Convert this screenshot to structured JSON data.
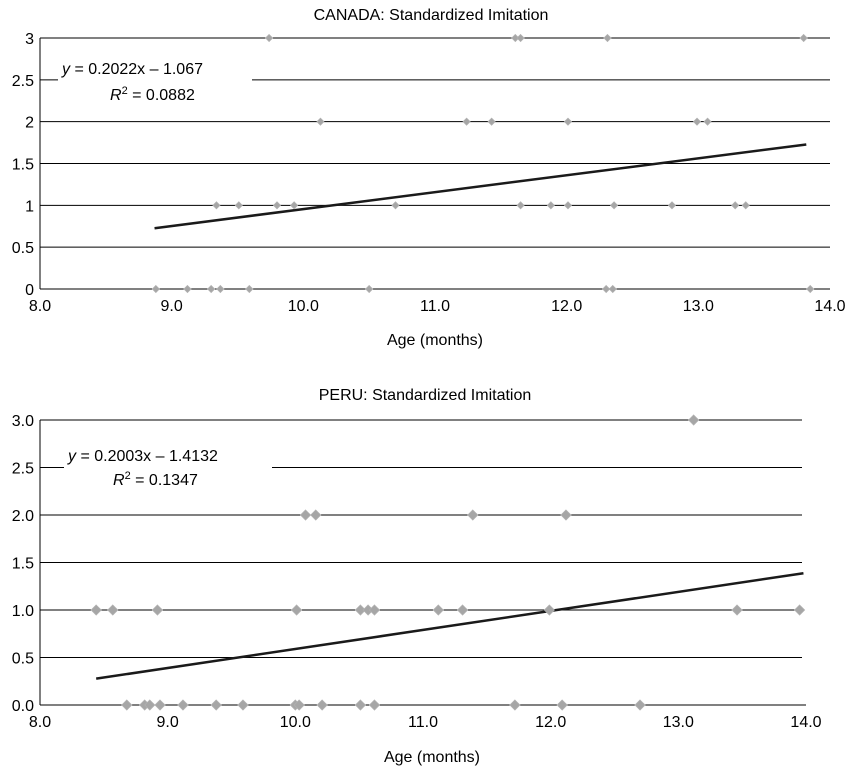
{
  "chart_data": [
    {
      "type": "scatter",
      "title": "CANADA: Standardized Imitation",
      "xlabel": "Age (months)",
      "ylabel": "",
      "xlim": [
        8.0,
        14.0
      ],
      "ylim": [
        0,
        3
      ],
      "x_ticks": [
        "8.0",
        "9.0",
        "10.0",
        "11.0",
        "12.0",
        "13.0",
        "14.0"
      ],
      "y_ticks": [
        "0",
        "0.5",
        "1",
        "1.5",
        "2",
        "2.5",
        "3"
      ],
      "grid": true,
      "marker_color": "#a6a6a6",
      "trendline": {
        "slope": 0.2022,
        "intercept": -1.067,
        "x_start": 8.87,
        "x_end": 13.82
      },
      "equation": {
        "lhs": "y",
        "rhs": " = 0.2022x – 1.067",
        "r_label": "R",
        "r_sup": "2",
        "r_value": " = 0.0882"
      },
      "points": [
        {
          "x": 9.74,
          "y": 3
        },
        {
          "x": 11.61,
          "y": 3
        },
        {
          "x": 11.65,
          "y": 3
        },
        {
          "x": 12.31,
          "y": 3
        },
        {
          "x": 13.8,
          "y": 3
        },
        {
          "x": 10.13,
          "y": 2
        },
        {
          "x": 11.24,
          "y": 2
        },
        {
          "x": 11.43,
          "y": 2
        },
        {
          "x": 12.01,
          "y": 2
        },
        {
          "x": 12.99,
          "y": 2
        },
        {
          "x": 13.07,
          "y": 2
        },
        {
          "x": 9.34,
          "y": 1
        },
        {
          "x": 9.51,
          "y": 1
        },
        {
          "x": 9.8,
          "y": 1
        },
        {
          "x": 9.93,
          "y": 1
        },
        {
          "x": 10.7,
          "y": 1
        },
        {
          "x": 11.65,
          "y": 1
        },
        {
          "x": 11.88,
          "y": 1
        },
        {
          "x": 12.01,
          "y": 1
        },
        {
          "x": 12.36,
          "y": 1
        },
        {
          "x": 12.8,
          "y": 1
        },
        {
          "x": 13.28,
          "y": 1
        },
        {
          "x": 13.36,
          "y": 1
        },
        {
          "x": 8.88,
          "y": 0
        },
        {
          "x": 9.12,
          "y": 0
        },
        {
          "x": 9.3,
          "y": 0
        },
        {
          "x": 9.37,
          "y": 0
        },
        {
          "x": 9.59,
          "y": 0
        },
        {
          "x": 10.5,
          "y": 0
        },
        {
          "x": 12.3,
          "y": 0
        },
        {
          "x": 12.35,
          "y": 0
        },
        {
          "x": 13.85,
          "y": 0
        }
      ]
    },
    {
      "type": "scatter",
      "title": "PERU: Standardized Imitation",
      "xlabel": "Age (months)",
      "ylabel": "",
      "xlim": [
        8.0,
        14.0
      ],
      "ylim": [
        0,
        3
      ],
      "x_ticks": [
        "8.0",
        "9.0",
        "10.0",
        "11.0",
        "12.0",
        "13.0",
        "14.0"
      ],
      "y_ticks": [
        "0.0",
        "0.5",
        "1.0",
        "1.5",
        "2.0",
        "2.5",
        "3.0"
      ],
      "grid": true,
      "marker_color": "#a6a6a6",
      "trendline": {
        "slope": 0.2003,
        "intercept": -1.4132,
        "x_start": 8.44,
        "x_end": 13.98
      },
      "equation": {
        "lhs": "y",
        "rhs": " = 0.2003x – 1.4132",
        "r_label": "R",
        "r_sup": "2",
        "r_value": " = 0.1347"
      },
      "points": [
        {
          "x": 13.12,
          "y": 3
        },
        {
          "x": 10.08,
          "y": 2
        },
        {
          "x": 10.16,
          "y": 2
        },
        {
          "x": 11.39,
          "y": 2
        },
        {
          "x": 12.12,
          "y": 2
        },
        {
          "x": 8.44,
          "y": 1
        },
        {
          "x": 8.57,
          "y": 1
        },
        {
          "x": 8.92,
          "y": 1
        },
        {
          "x": 10.01,
          "y": 1
        },
        {
          "x": 10.51,
          "y": 1
        },
        {
          "x": 10.57,
          "y": 1
        },
        {
          "x": 10.62,
          "y": 1
        },
        {
          "x": 11.12,
          "y": 1
        },
        {
          "x": 11.31,
          "y": 1
        },
        {
          "x": 11.99,
          "y": 1
        },
        {
          "x": 13.46,
          "y": 1
        },
        {
          "x": 13.95,
          "y": 1
        },
        {
          "x": 8.68,
          "y": 0
        },
        {
          "x": 8.82,
          "y": 0
        },
        {
          "x": 8.86,
          "y": 0
        },
        {
          "x": 8.94,
          "y": 0
        },
        {
          "x": 9.12,
          "y": 0
        },
        {
          "x": 9.38,
          "y": 0
        },
        {
          "x": 9.59,
          "y": 0
        },
        {
          "x": 10.0,
          "y": 0
        },
        {
          "x": 10.03,
          "y": 0
        },
        {
          "x": 10.21,
          "y": 0
        },
        {
          "x": 10.51,
          "y": 0
        },
        {
          "x": 10.62,
          "y": 0
        },
        {
          "x": 11.72,
          "y": 0
        },
        {
          "x": 12.09,
          "y": 0
        },
        {
          "x": 12.7,
          "y": 0
        }
      ]
    }
  ]
}
